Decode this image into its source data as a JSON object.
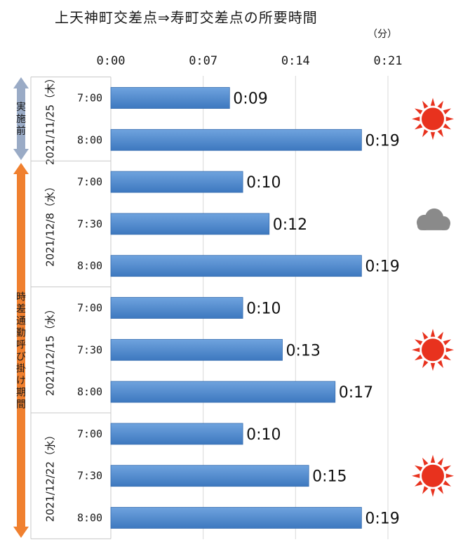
{
  "title": "上天神町交差点⇒寿町交差点の所要時間",
  "unit": "（分）",
  "chart_data": {
    "type": "bar",
    "orientation": "horizontal",
    "x_ticks": [
      "0:00",
      "0:07",
      "0:14",
      "0:21"
    ],
    "xlim_minutes": [
      0,
      21
    ],
    "grid": true,
    "groups": [
      {
        "date": "2021/11/25（木）",
        "weather": "sunny",
        "bars": [
          {
            "time": "7:00",
            "minutes": 9,
            "label": "0:09"
          },
          {
            "time": "8:00",
            "minutes": 19,
            "label": "0:19"
          }
        ]
      },
      {
        "date": "2021/12/8（水）",
        "weather": "cloudy",
        "bars": [
          {
            "time": "7:00",
            "minutes": 10,
            "label": "0:10"
          },
          {
            "time": "7:30",
            "minutes": 12,
            "label": "0:12"
          },
          {
            "time": "8:00",
            "minutes": 19,
            "label": "0:19"
          }
        ]
      },
      {
        "date": "2021/12/15（水）",
        "weather": "sunny",
        "bars": [
          {
            "time": "7:00",
            "minutes": 10,
            "label": "0:10"
          },
          {
            "time": "7:30",
            "minutes": 13,
            "label": "0:13"
          },
          {
            "time": "8:00",
            "minutes": 17,
            "label": "0:17"
          }
        ]
      },
      {
        "date": "2021/12/22（水）",
        "weather": "sunny",
        "bars": [
          {
            "time": "7:00",
            "minutes": 10,
            "label": "0:10"
          },
          {
            "time": "7:30",
            "minutes": 15,
            "label": "0:15"
          },
          {
            "time": "8:00",
            "minutes": 19,
            "label": "0:19"
          }
        ]
      }
    ],
    "period_labels": [
      {
        "label": "実施前",
        "color": "#9aabc6"
      },
      {
        "label": "時差通勤呼び掛け期間",
        "color": "#f0802f"
      }
    ],
    "bar_color": "#4a86cc"
  }
}
